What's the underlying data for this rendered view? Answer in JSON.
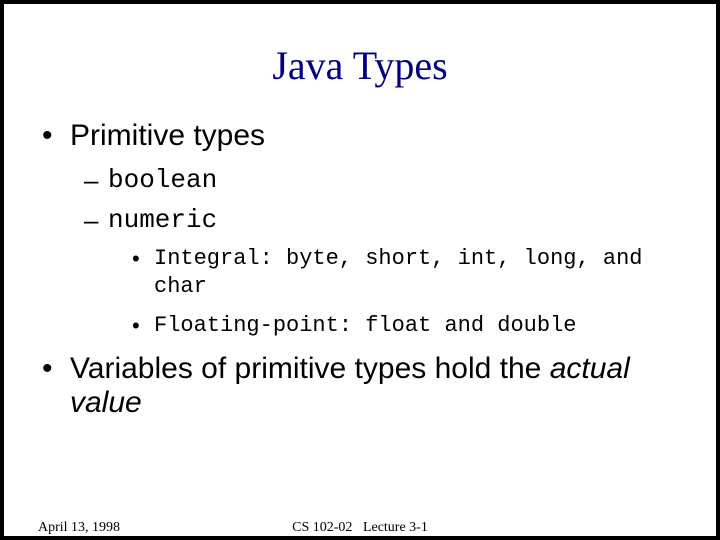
{
  "slide": {
    "title": "Java Types",
    "title_color": "#000080",
    "title_fontsize": 40,
    "border_color": "#000000",
    "border_width": 4,
    "background": "#ffffff",
    "bullets": {
      "l1_a": "Primitive types",
      "l2_a": "boolean",
      "l2_b": "numeric",
      "l3_a": "Integral: byte, short, int, long, and char",
      "l3_b": "Floating-point: float and double",
      "l1_b_prefix": "Variables of primitive types hold the ",
      "l1_b_italic": "actual value"
    },
    "fonts": {
      "title_family": "Times New Roman",
      "body_sans": "Arial",
      "body_mono": "Courier New",
      "level1_size": 30,
      "level2_size": 26,
      "level3_size": 22
    }
  },
  "footer": {
    "date": "April 13, 1998",
    "course": "CS 102-02",
    "lecture": "Lecture 3-1",
    "fontsize": 14
  }
}
